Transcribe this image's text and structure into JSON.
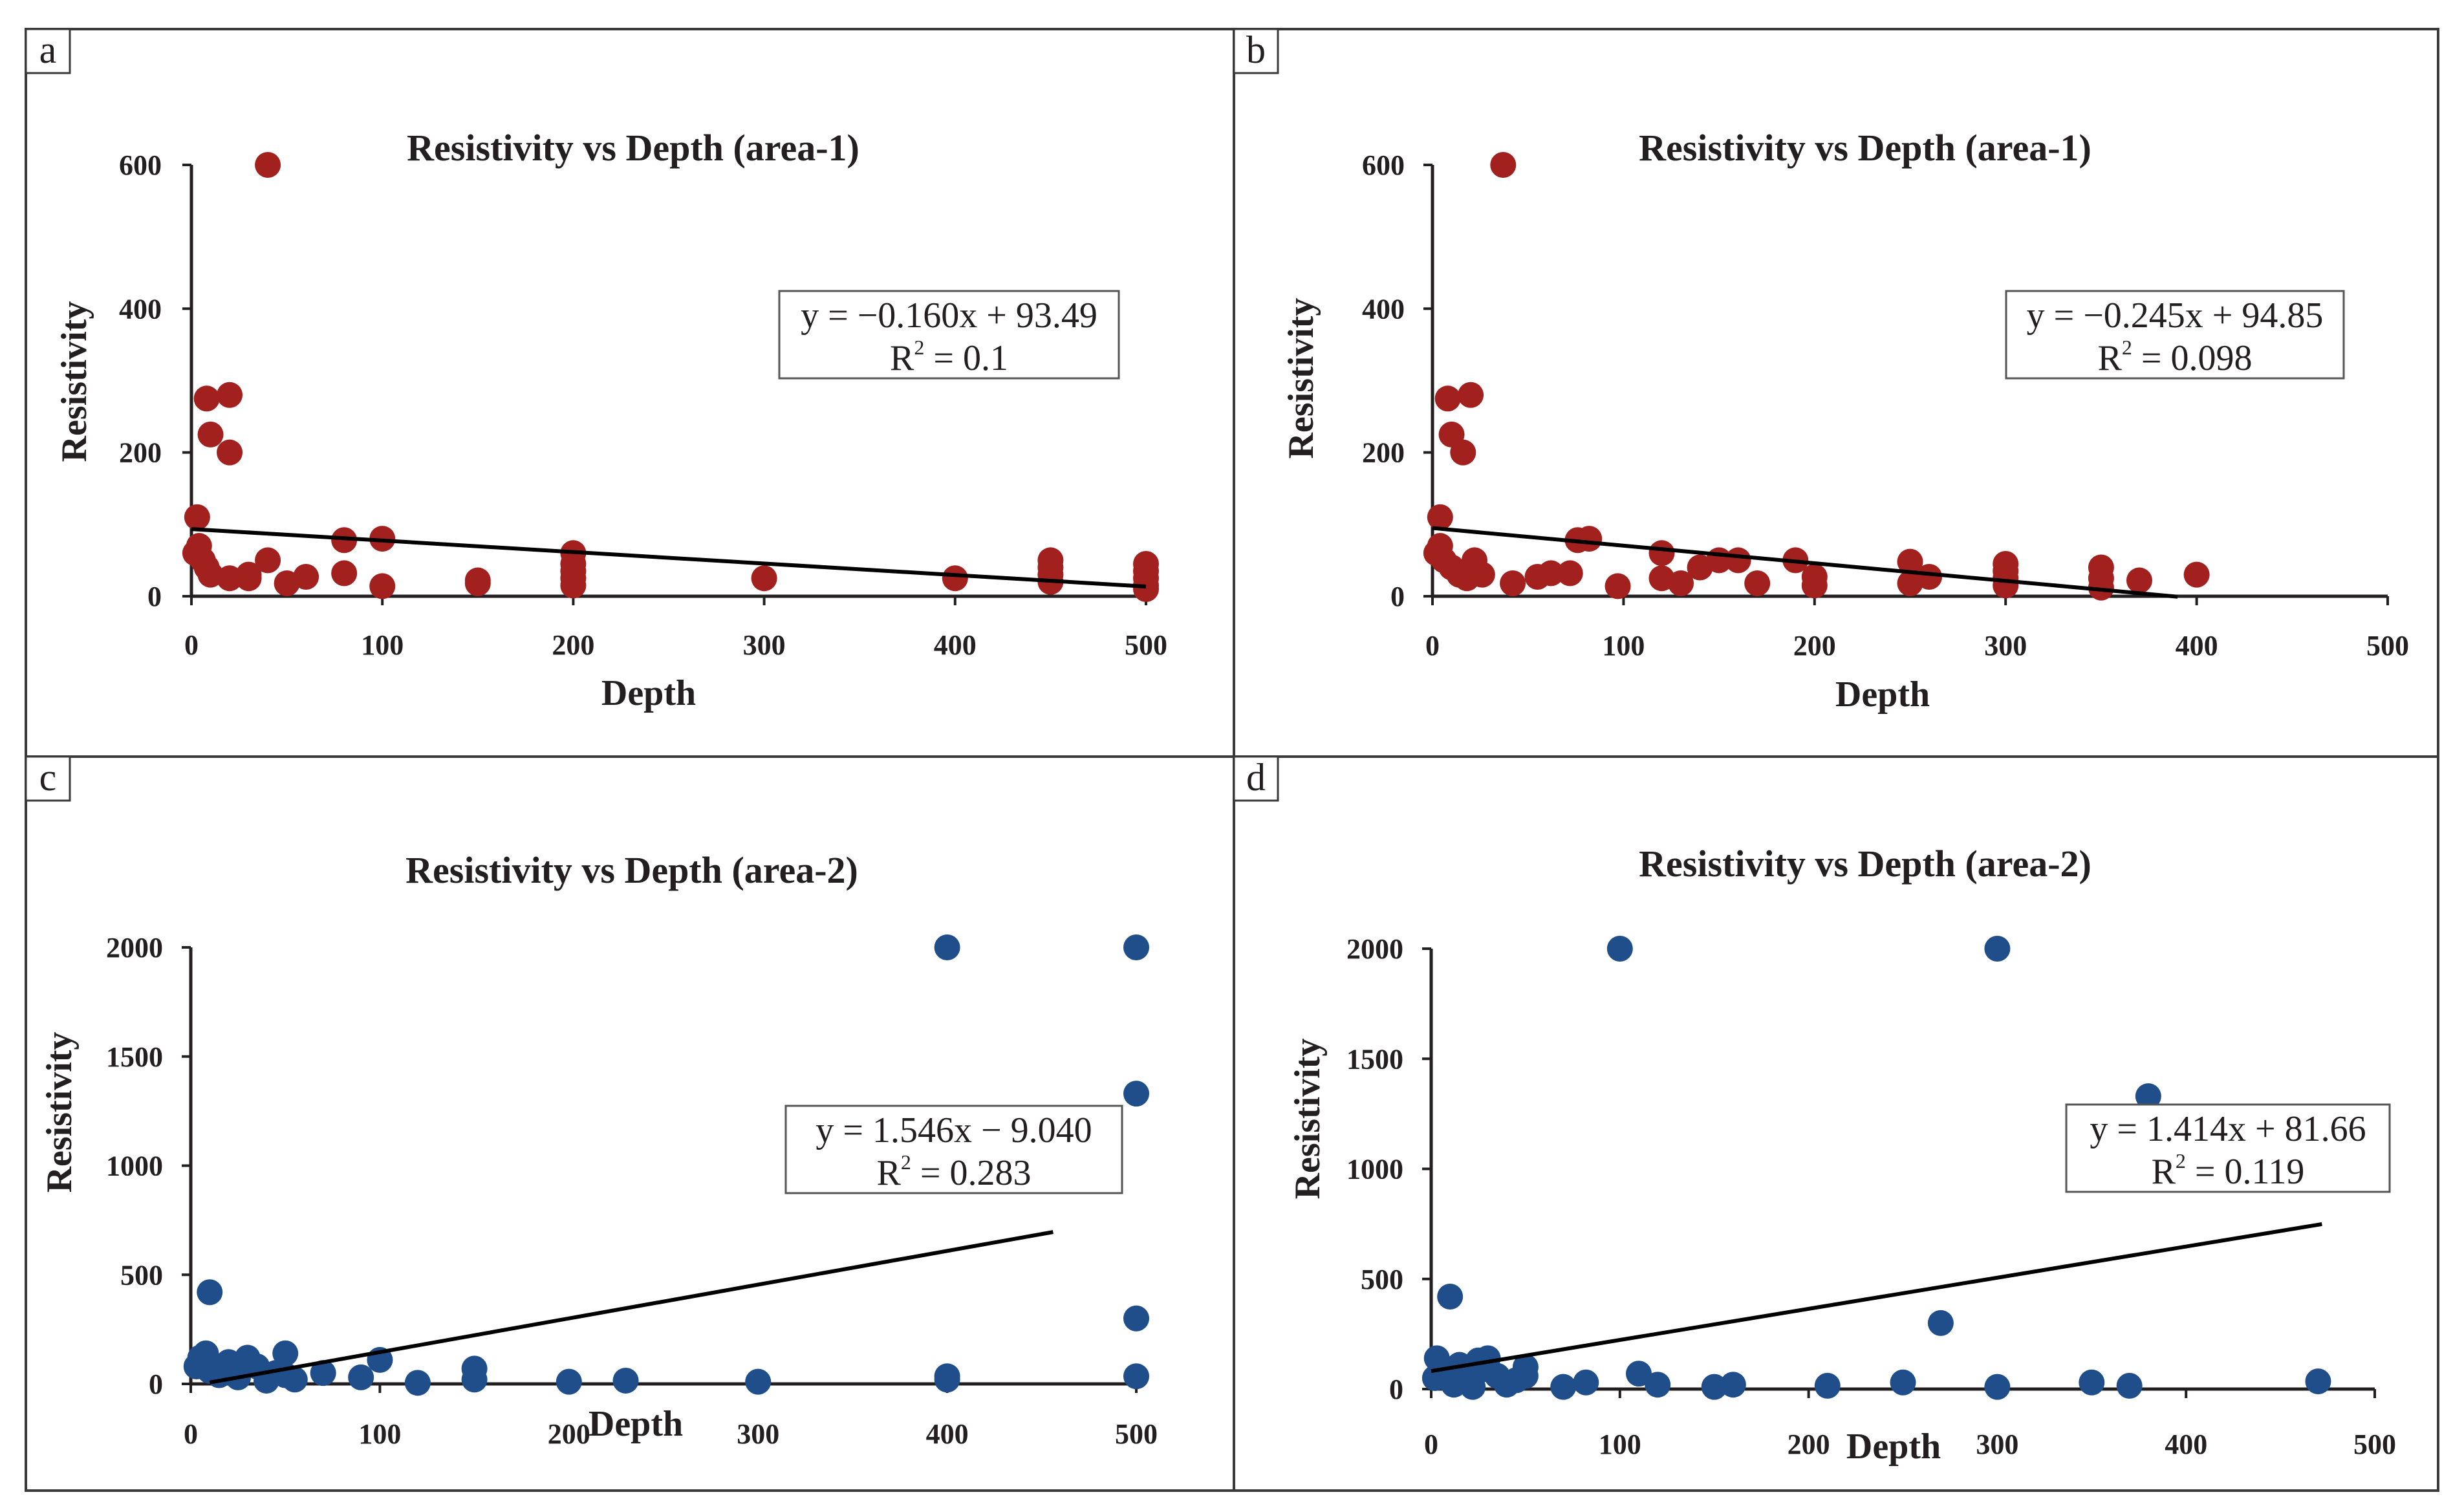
{
  "chart_data": [
    {
      "panel": "a",
      "type": "scatter",
      "title": "Resistivity vs Depth (area-1)",
      "xlabel": "Depth",
      "ylabel": "Resistivity",
      "xlim": [
        0,
        500
      ],
      "ylim": [
        0,
        600
      ],
      "xticks": [
        0,
        100,
        200,
        300,
        400,
        500
      ],
      "yticks": [
        0,
        200,
        400,
        600
      ],
      "marker_color": "#a2201e",
      "points": [
        [
          40,
          600
        ],
        [
          8,
          275
        ],
        [
          20,
          280
        ],
        [
          10,
          225
        ],
        [
          20,
          200
        ],
        [
          3,
          110
        ],
        [
          2,
          60
        ],
        [
          4,
          70
        ],
        [
          6,
          50
        ],
        [
          8,
          40
        ],
        [
          10,
          30
        ],
        [
          20,
          25
        ],
        [
          30,
          30
        ],
        [
          30,
          25
        ],
        [
          40,
          50
        ],
        [
          50,
          18
        ],
        [
          60,
          27
        ],
        [
          80,
          78
        ],
        [
          80,
          32
        ],
        [
          100,
          80
        ],
        [
          100,
          14
        ],
        [
          150,
          18
        ],
        [
          150,
          22
        ],
        [
          200,
          60
        ],
        [
          200,
          45
        ],
        [
          200,
          35
        ],
        [
          200,
          25
        ],
        [
          200,
          15
        ],
        [
          300,
          25
        ],
        [
          400,
          25
        ],
        [
          450,
          50
        ],
        [
          450,
          40
        ],
        [
          450,
          30
        ],
        [
          450,
          20
        ],
        [
          500,
          45
        ],
        [
          500,
          35
        ],
        [
          500,
          25
        ],
        [
          500,
          15
        ],
        [
          500,
          10
        ]
      ],
      "trend": {
        "slope": -0.16,
        "intercept": 93.49,
        "x_range": [
          0,
          500
        ]
      },
      "equation": "y = −0.160x + 93.49",
      "r2_label": "R",
      "r2_value": " = 0.1"
    },
    {
      "panel": "b",
      "type": "scatter",
      "title": "Resistivity vs Depth (area-1)",
      "xlabel": "Depth",
      "ylabel": "Resistivity",
      "xlim": [
        0,
        500
      ],
      "ylim": [
        0,
        600
      ],
      "xticks": [
        0,
        100,
        200,
        300,
        400,
        500
      ],
      "yticks": [
        0,
        200,
        400,
        600
      ],
      "marker_color": "#a2201e",
      "points": [
        [
          37,
          600
        ],
        [
          8,
          275
        ],
        [
          20,
          280
        ],
        [
          10,
          225
        ],
        [
          16,
          200
        ],
        [
          4,
          110
        ],
        [
          2,
          60
        ],
        [
          4,
          70
        ],
        [
          6,
          50
        ],
        [
          10,
          40
        ],
        [
          14,
          30
        ],
        [
          18,
          25
        ],
        [
          22,
          50
        ],
        [
          26,
          30
        ],
        [
          42,
          18
        ],
        [
          55,
          27
        ],
        [
          62,
          32
        ],
        [
          72,
          32
        ],
        [
          76,
          78
        ],
        [
          82,
          80
        ],
        [
          97,
          14
        ],
        [
          120,
          60
        ],
        [
          120,
          25
        ],
        [
          130,
          18
        ],
        [
          140,
          40
        ],
        [
          150,
          50
        ],
        [
          160,
          50
        ],
        [
          170,
          18
        ],
        [
          190,
          50
        ],
        [
          200,
          27
        ],
        [
          200,
          15
        ],
        [
          250,
          48
        ],
        [
          250,
          18
        ],
        [
          260,
          27
        ],
        [
          300,
          45
        ],
        [
          300,
          35
        ],
        [
          300,
          25
        ],
        [
          300,
          15
        ],
        [
          350,
          40
        ],
        [
          350,
          25
        ],
        [
          350,
          12
        ],
        [
          370,
          22
        ],
        [
          400,
          30
        ]
      ],
      "trend": {
        "slope": -0.245,
        "intercept": 94.85,
        "x_range": [
          0,
          390
        ]
      },
      "equation": "y = −0.245x + 94.85",
      "r2_label": "R",
      "r2_value": " = 0.098"
    },
    {
      "panel": "c",
      "type": "scatter",
      "title": "Resistivity vs Depth (area-2)",
      "xlabel": "Depth",
      "ylabel": "Resistivity",
      "xlim": [
        0,
        500
      ],
      "ylim": [
        0,
        2000
      ],
      "xticks": [
        0,
        100,
        200,
        300,
        400,
        500
      ],
      "yticks": [
        0,
        500,
        1000,
        1500,
        2000
      ],
      "marker_color": "#1f4e8a",
      "points": [
        [
          400,
          2000
        ],
        [
          500,
          2000
        ],
        [
          500,
          1330
        ],
        [
          500,
          300
        ],
        [
          500,
          35
        ],
        [
          400,
          35
        ],
        [
          400,
          20
        ],
        [
          10,
          420
        ],
        [
          3,
          80
        ],
        [
          5,
          120
        ],
        [
          8,
          140
        ],
        [
          10,
          60
        ],
        [
          15,
          40
        ],
        [
          20,
          100
        ],
        [
          25,
          30
        ],
        [
          30,
          120
        ],
        [
          35,
          80
        ],
        [
          40,
          15
        ],
        [
          45,
          50
        ],
        [
          50,
          140
        ],
        [
          50,
          40
        ],
        [
          55,
          20
        ],
        [
          70,
          50
        ],
        [
          90,
          30
        ],
        [
          100,
          110
        ],
        [
          120,
          5
        ],
        [
          150,
          70
        ],
        [
          150,
          20
        ],
        [
          200,
          10
        ],
        [
          230,
          15
        ],
        [
          300,
          10
        ]
      ],
      "trend": {
        "slope": 1.546,
        "intercept": -9.04,
        "x_range": [
          10,
          456
        ]
      },
      "equation": "y = 1.546x − 9.040",
      "r2_label": "R",
      "r2_value": " = 0.283"
    },
    {
      "panel": "d",
      "type": "scatter",
      "title": "Resistivity vs Depth (area-2)",
      "xlabel": "Depth",
      "ylabel": "Resistivity",
      "xlim": [
        0,
        500
      ],
      "ylim": [
        0,
        2000
      ],
      "xticks": [
        0,
        100,
        200,
        300,
        400,
        500
      ],
      "yticks": [
        0,
        500,
        1000,
        1500,
        2000
      ],
      "marker_color": "#1f4e8a",
      "points": [
        [
          100,
          2000
        ],
        [
          300,
          2000
        ],
        [
          380,
          1330
        ],
        [
          270,
          300
        ],
        [
          10,
          420
        ],
        [
          2,
          50
        ],
        [
          3,
          140
        ],
        [
          5,
          100
        ],
        [
          8,
          70
        ],
        [
          10,
          40
        ],
        [
          12,
          20
        ],
        [
          15,
          110
        ],
        [
          18,
          60
        ],
        [
          20,
          30
        ],
        [
          22,
          10
        ],
        [
          25,
          130
        ],
        [
          28,
          90
        ],
        [
          30,
          140
        ],
        [
          35,
          60
        ],
        [
          40,
          20
        ],
        [
          45,
          40
        ],
        [
          50,
          100
        ],
        [
          50,
          60
        ],
        [
          70,
          10
        ],
        [
          82,
          30
        ],
        [
          110,
          70
        ],
        [
          120,
          20
        ],
        [
          150,
          10
        ],
        [
          160,
          20
        ],
        [
          210,
          15
        ],
        [
          250,
          30
        ],
        [
          300,
          10
        ],
        [
          350,
          30
        ],
        [
          370,
          15
        ],
        [
          470,
          35
        ]
      ],
      "trend": {
        "slope": 1.414,
        "intercept": 81.66,
        "x_range": [
          0,
          472
        ]
      },
      "equation": "y = 1.414x + 81.66",
      "r2_label": "R",
      "r2_value": " = 0.119"
    }
  ]
}
